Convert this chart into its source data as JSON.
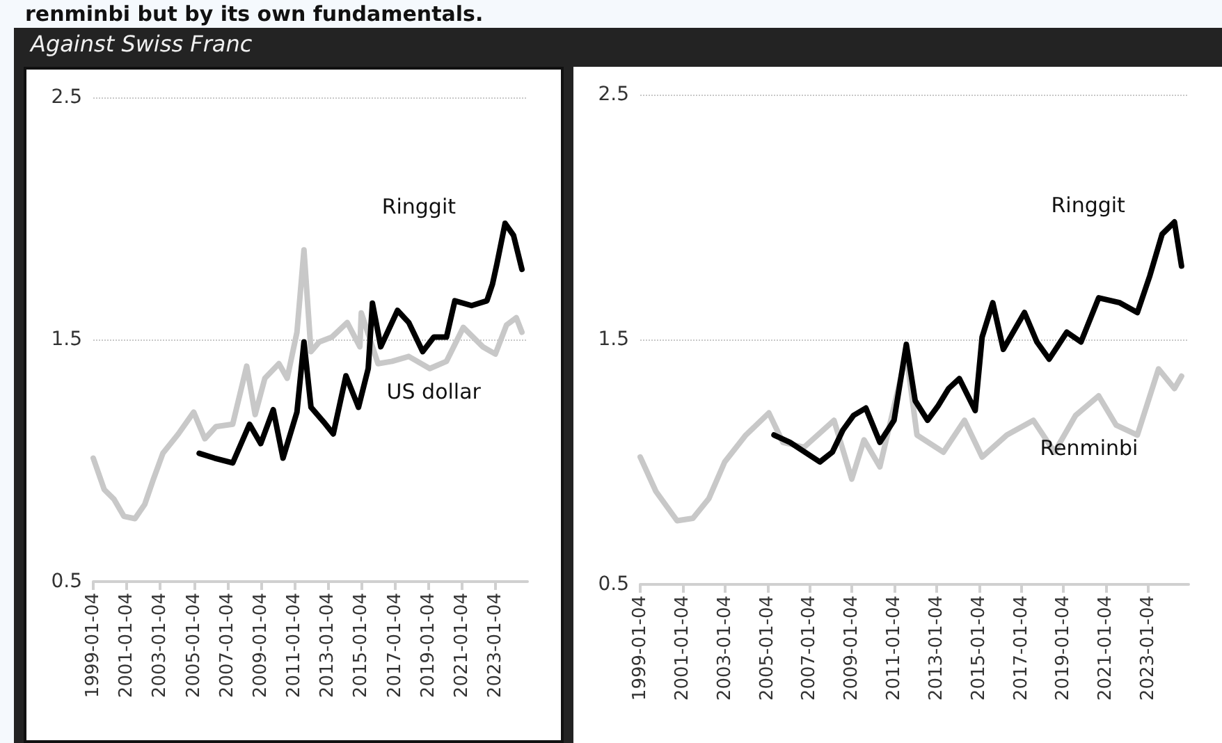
{
  "chart_data": [
    {
      "type": "line",
      "title": "renminbi but by its own fundamentals.",
      "subtitle": "Against Swiss Franc",
      "ylim": [
        0.5,
        2.5
      ],
      "yticks": [
        0.5,
        1.5,
        2.5
      ],
      "xlim": [
        "1999-01-04",
        "2024-12-01"
      ],
      "xticks": [
        "1999-01-04",
        "2001-01-04",
        "2003-01-04",
        "2005-01-04",
        "2007-01-04",
        "2009-01-04",
        "2011-01-04",
        "2013-01-04",
        "2015-01-04",
        "2017-01-04",
        "2019-01-04",
        "2021-01-04",
        "2023-01-04"
      ],
      "grid": "y",
      "legend": false,
      "marker": "none",
      "line_style": "solid",
      "series": [
        {
          "name": "US dollar",
          "color": "#c8c8c8",
          "x": [
            "1999-01-04",
            "1999-09",
            "2000-04",
            "2000-11",
            "2001-07",
            "2002-02",
            "2002-08",
            "2003-03",
            "2004-02",
            "2005-01",
            "2005-09",
            "2006-05",
            "2007-05",
            "2008-03",
            "2008-09",
            "2009-04",
            "2010-02",
            "2010-08",
            "2011-03",
            "2011-08",
            "2012-01",
            "2012-07",
            "2013-04",
            "2014-03",
            "2014-12",
            "2015-01",
            "2016-01",
            "2016-11",
            "2017-11",
            "2019-02",
            "2020-02",
            "2021-02",
            "2022-04",
            "2023-01",
            "2023-09",
            "2024-04",
            "2024-08"
          ],
          "values": [
            1.01,
            0.88,
            0.84,
            0.77,
            0.76,
            0.82,
            0.92,
            1.03,
            1.11,
            1.2,
            1.09,
            1.14,
            1.15,
            1.39,
            1.19,
            1.34,
            1.4,
            1.34,
            1.53,
            1.87,
            1.45,
            1.49,
            1.51,
            1.57,
            1.47,
            1.61,
            1.4,
            1.41,
            1.43,
            1.38,
            1.41,
            1.55,
            1.47,
            1.44,
            1.56,
            1.59,
            1.53
          ]
        },
        {
          "name": "Ringgit",
          "color": "#000000",
          "x": [
            "2005-05",
            "2006-04",
            "2007-05",
            "2008-05",
            "2009-01",
            "2009-10",
            "2010-05",
            "2011-03",
            "2011-08",
            "2012-01",
            "2012-10",
            "2013-05",
            "2014-02",
            "2014-11",
            "2015-06",
            "2015-09",
            "2016-03",
            "2017-03",
            "2017-11",
            "2018-09",
            "2019-05",
            "2020-02",
            "2020-08",
            "2021-08",
            "2022-07",
            "2022-11",
            "2023-02",
            "2023-08",
            "2024-02",
            "2024-08"
          ],
          "values": [
            1.03,
            1.01,
            0.99,
            1.15,
            1.07,
            1.21,
            1.01,
            1.2,
            1.49,
            1.22,
            1.16,
            1.11,
            1.35,
            1.22,
            1.38,
            1.65,
            1.47,
            1.62,
            1.57,
            1.45,
            1.51,
            1.51,
            1.66,
            1.64,
            1.66,
            1.73,
            1.81,
            1.98,
            1.93,
            1.79
          ]
        }
      ]
    },
    {
      "type": "line",
      "ylim": [
        0.5,
        2.5
      ],
      "yticks": [
        0.5,
        1.5,
        2.5
      ],
      "xlim": [
        "1999-01-04",
        "2024-12-01"
      ],
      "xticks": [
        "1999-01-04",
        "2001-01-04",
        "2003-01-04",
        "2005-01-04",
        "2007-01-04",
        "2009-01-04",
        "2011-01-04",
        "2013-01-04",
        "2015-01-04",
        "2017-01-04",
        "2019-01-04",
        "2021-01-04",
        "2023-01-04"
      ],
      "grid": "y",
      "legend": false,
      "marker": "none",
      "line_style": "solid",
      "series": [
        {
          "name": "Renminbi",
          "color": "#c8c8c8",
          "x": [
            "1999-01-04",
            "1999-10",
            "2000-10",
            "2001-07",
            "2002-04",
            "2003-01",
            "2004-01",
            "2005-02",
            "2005-10",
            "2006-10",
            "2008-03",
            "2009-01",
            "2009-08",
            "2010-05",
            "2011-08",
            "2012-02",
            "2013-05",
            "2014-05",
            "2015-03",
            "2016-05",
            "2017-08",
            "2018-08",
            "2019-08",
            "2020-09",
            "2021-07",
            "2022-07",
            "2023-07",
            "2024-04",
            "2024-08"
          ],
          "values": [
            1.02,
            0.88,
            0.76,
            0.77,
            0.85,
            1.0,
            1.11,
            1.2,
            1.08,
            1.06,
            1.17,
            0.93,
            1.09,
            0.98,
            1.44,
            1.11,
            1.04,
            1.17,
            1.02,
            1.11,
            1.17,
            1.04,
            1.19,
            1.27,
            1.15,
            1.11,
            1.38,
            1.3,
            1.35
          ]
        },
        {
          "name": "Ringgit",
          "color": "#000000",
          "x": [
            "2005-05",
            "2006-02",
            "2007-07",
            "2008-02",
            "2008-08",
            "2009-02",
            "2009-09",
            "2010-05",
            "2011-01",
            "2011-08",
            "2012-01",
            "2012-08",
            "2013-02",
            "2013-08",
            "2014-02",
            "2014-11",
            "2015-03",
            "2015-09",
            "2016-03",
            "2017-03",
            "2017-10",
            "2018-05",
            "2019-03",
            "2019-11",
            "2020-09",
            "2021-09",
            "2022-07",
            "2023-02",
            "2023-09",
            "2024-04",
            "2024-08"
          ],
          "values": [
            1.11,
            1.08,
            1.0,
            1.04,
            1.13,
            1.19,
            1.22,
            1.08,
            1.17,
            1.48,
            1.25,
            1.17,
            1.23,
            1.3,
            1.34,
            1.21,
            1.51,
            1.65,
            1.46,
            1.61,
            1.49,
            1.42,
            1.53,
            1.49,
            1.67,
            1.65,
            1.61,
            1.76,
            1.93,
            1.98,
            1.8
          ]
        }
      ]
    }
  ]
}
